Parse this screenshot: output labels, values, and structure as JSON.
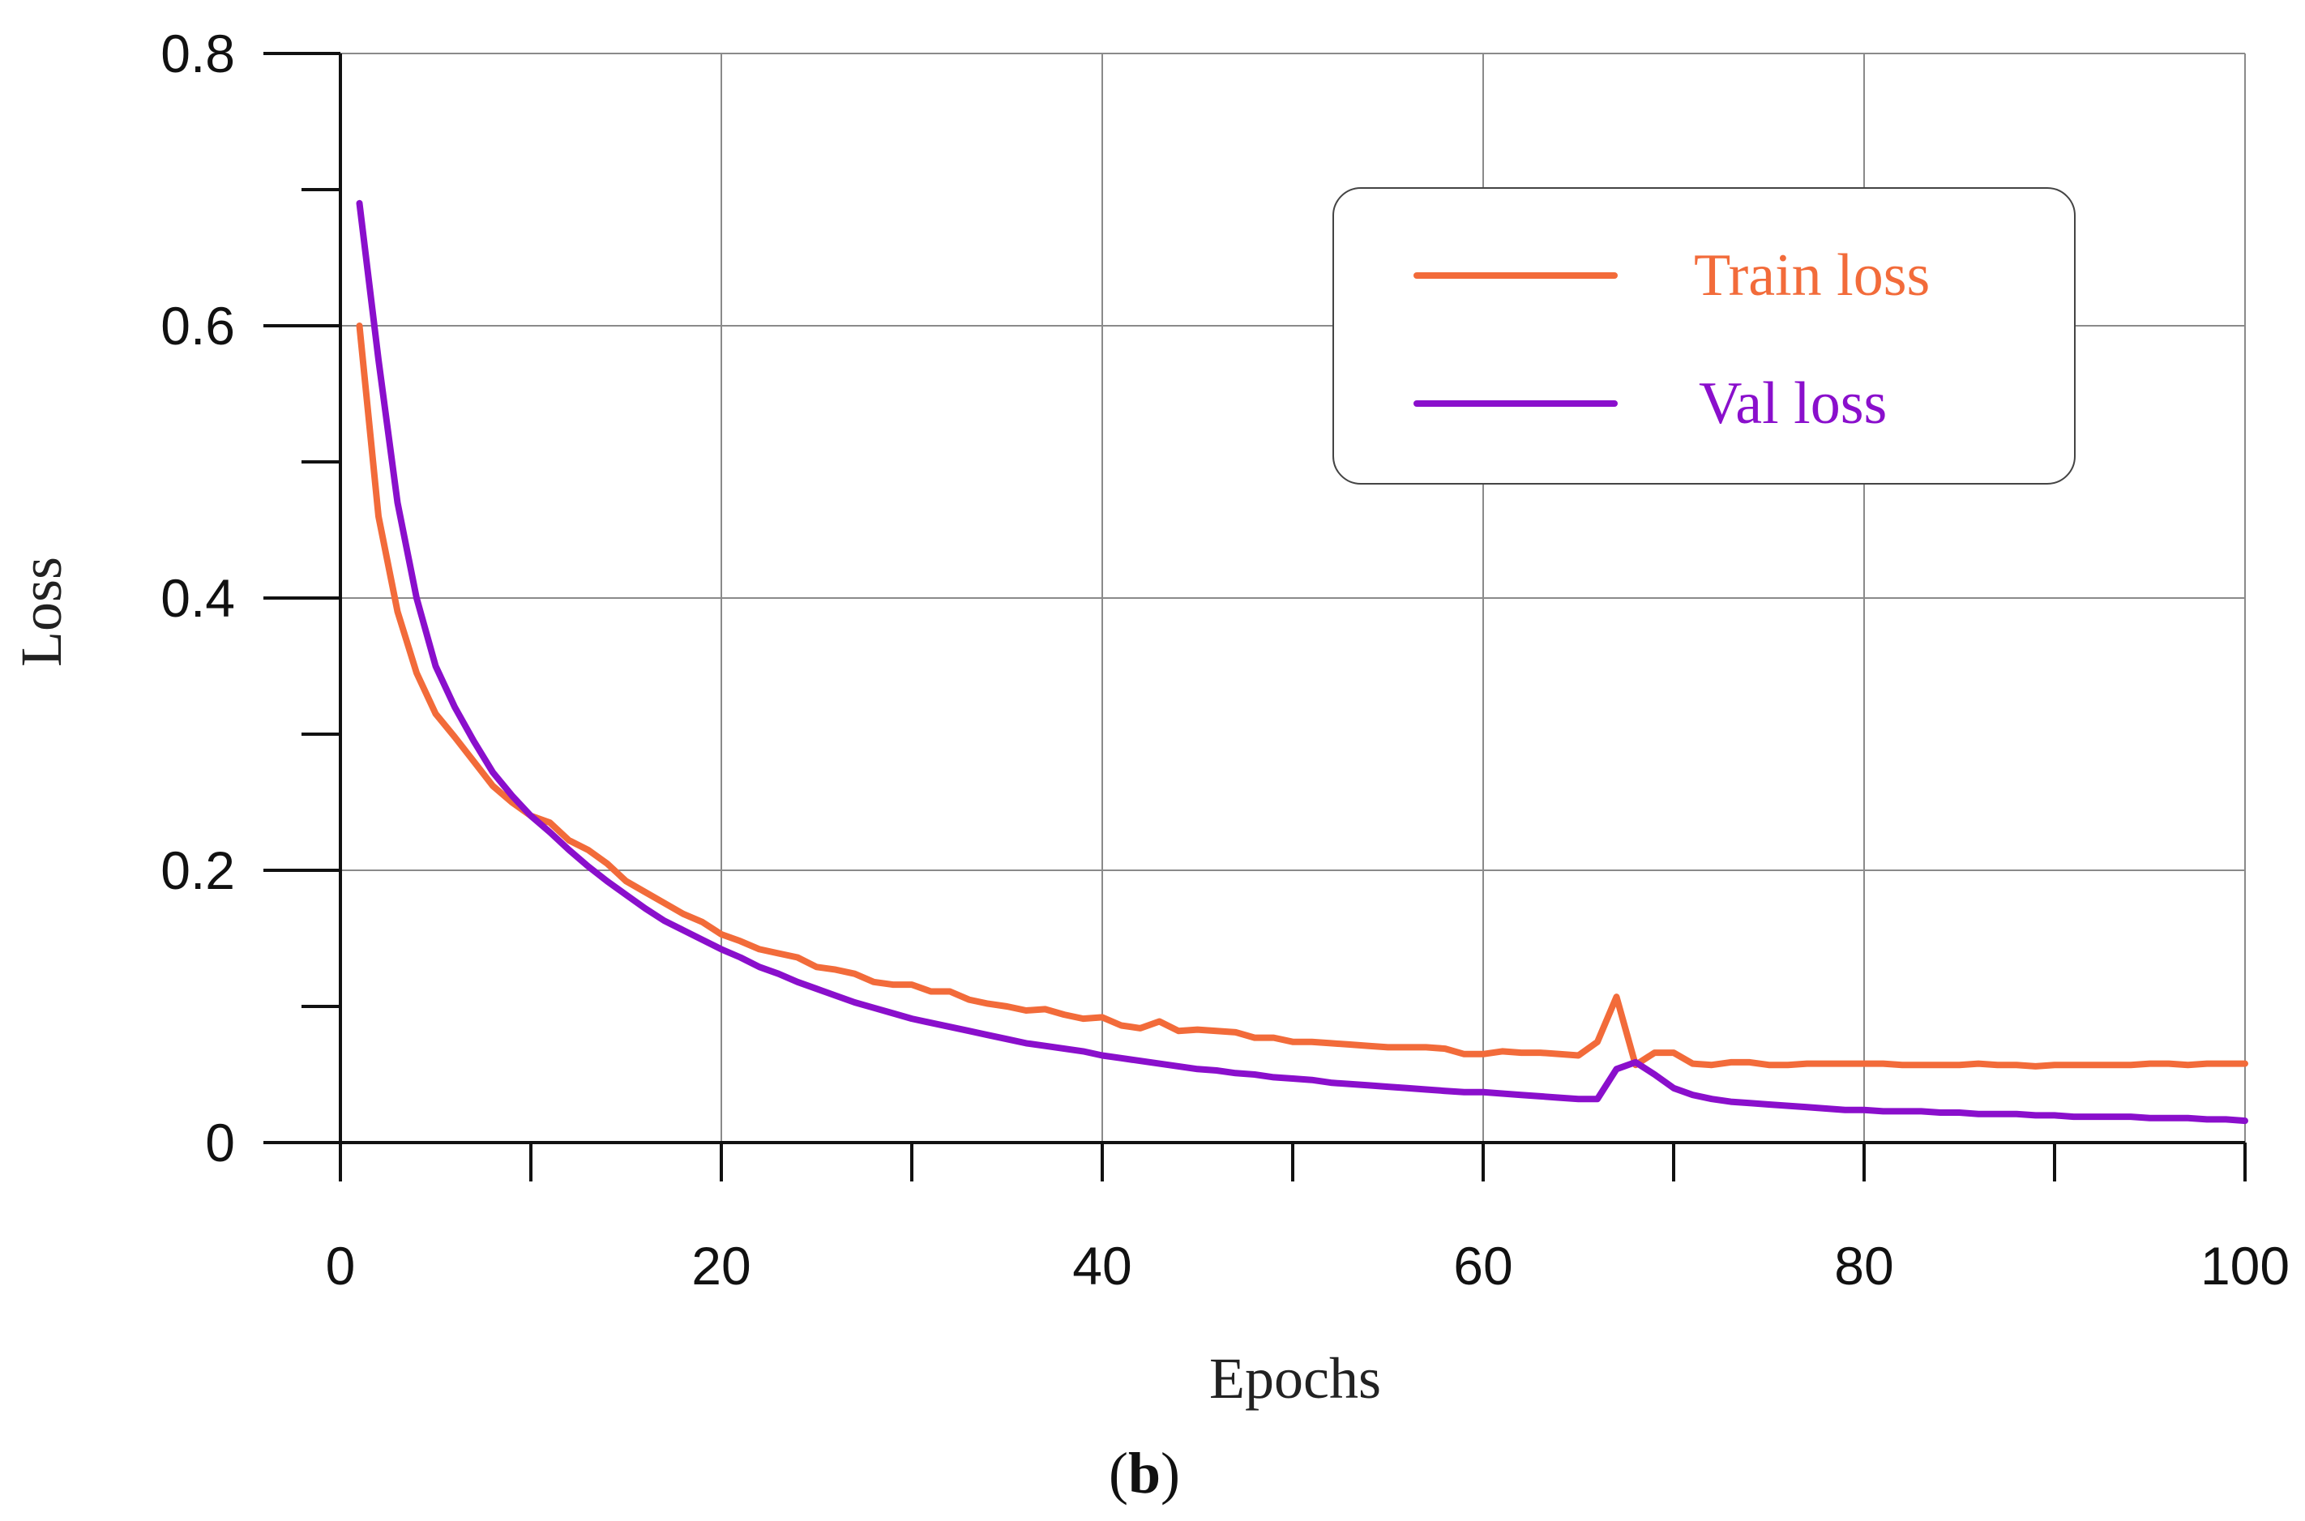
{
  "chart_data": {
    "type": "line",
    "title": "",
    "xlabel": "Epochs",
    "ylabel": "Loss",
    "caption_open": "(",
    "caption_bold": "b",
    "caption_close": ")",
    "xlim": [
      0,
      100
    ],
    "ylim": [
      0,
      0.8
    ],
    "x_ticks": [
      0,
      20,
      40,
      60,
      80,
      100
    ],
    "x_tick_labels": [
      "0",
      "20",
      "40",
      "60",
      "80",
      "100"
    ],
    "x_minor_ticks": [
      10,
      30,
      50,
      70,
      90
    ],
    "y_ticks": [
      0,
      0.2,
      0.4,
      0.6,
      0.8
    ],
    "y_tick_labels": [
      "0",
      "0.2",
      "0.4",
      "0.6",
      "0.8"
    ],
    "y_minor_ticks": [
      0.1,
      0.3,
      0.5,
      0.7
    ],
    "grid": true,
    "legend_position": "top-right",
    "series": [
      {
        "name": "Train loss",
        "color": "#F26B3A",
        "x": [
          1,
          2,
          3,
          4,
          5,
          6,
          7,
          8,
          9,
          10,
          11,
          12,
          13,
          14,
          15,
          16,
          17,
          18,
          19,
          20,
          21,
          22,
          23,
          24,
          25,
          26,
          27,
          28,
          29,
          30,
          31,
          32,
          33,
          34,
          35,
          36,
          37,
          38,
          39,
          40,
          41,
          42,
          43,
          44,
          45,
          46,
          47,
          48,
          49,
          50,
          51,
          52,
          53,
          54,
          55,
          56,
          57,
          58,
          59,
          60,
          61,
          62,
          63,
          64,
          65,
          66,
          67,
          68,
          69,
          70,
          71,
          72,
          73,
          74,
          75,
          76,
          77,
          78,
          79,
          80,
          81,
          82,
          83,
          84,
          85,
          86,
          87,
          88,
          89,
          90,
          91,
          92,
          93,
          94,
          95,
          96,
          97,
          98,
          99,
          100
        ],
        "y": [
          0.6,
          0.46,
          0.39,
          0.345,
          0.315,
          0.298,
          0.28,
          0.262,
          0.25,
          0.24,
          0.235,
          0.222,
          0.215,
          0.205,
          0.192,
          0.184,
          0.176,
          0.168,
          0.162,
          0.153,
          0.148,
          0.142,
          0.139,
          0.136,
          0.129,
          0.127,
          0.124,
          0.118,
          0.116,
          0.116,
          0.111,
          0.111,
          0.105,
          0.102,
          0.1,
          0.097,
          0.098,
          0.094,
          0.091,
          0.092,
          0.086,
          0.084,
          0.089,
          0.082,
          0.083,
          0.082,
          0.081,
          0.077,
          0.077,
          0.074,
          0.074,
          0.073,
          0.072,
          0.071,
          0.07,
          0.07,
          0.07,
          0.069,
          0.065,
          0.065,
          0.067,
          0.066,
          0.066,
          0.065,
          0.064,
          0.074,
          0.107,
          0.057,
          0.066,
          0.066,
          0.058,
          0.057,
          0.059,
          0.059,
          0.057,
          0.057,
          0.058,
          0.058,
          0.058,
          0.058,
          0.058,
          0.057,
          0.057,
          0.057,
          0.057,
          0.058,
          0.057,
          0.057,
          0.056,
          0.057,
          0.057,
          0.057,
          0.057,
          0.057,
          0.058,
          0.058,
          0.057,
          0.058,
          0.058,
          0.058
        ]
      },
      {
        "name": "Val loss",
        "color": "#8A0FCC",
        "x": [
          1,
          2,
          3,
          4,
          5,
          6,
          7,
          8,
          9,
          10,
          11,
          12,
          13,
          14,
          15,
          16,
          17,
          18,
          19,
          20,
          21,
          22,
          23,
          24,
          25,
          26,
          27,
          28,
          29,
          30,
          31,
          32,
          33,
          34,
          35,
          36,
          37,
          38,
          39,
          40,
          41,
          42,
          43,
          44,
          45,
          46,
          47,
          48,
          49,
          50,
          51,
          52,
          53,
          54,
          55,
          56,
          57,
          58,
          59,
          60,
          61,
          62,
          63,
          64,
          65,
          66,
          67,
          68,
          69,
          70,
          71,
          72,
          73,
          74,
          75,
          76,
          77,
          78,
          79,
          80,
          81,
          82,
          83,
          84,
          85,
          86,
          87,
          88,
          89,
          90,
          91,
          92,
          93,
          94,
          95,
          96,
          97,
          98,
          99,
          100
        ],
        "y": [
          0.69,
          0.575,
          0.47,
          0.4,
          0.35,
          0.32,
          0.295,
          0.272,
          0.255,
          0.24,
          0.228,
          0.215,
          0.203,
          0.192,
          0.182,
          0.172,
          0.163,
          0.156,
          0.149,
          0.142,
          0.136,
          0.129,
          0.124,
          0.118,
          0.113,
          0.108,
          0.103,
          0.099,
          0.095,
          0.091,
          0.088,
          0.085,
          0.082,
          0.079,
          0.076,
          0.073,
          0.071,
          0.069,
          0.067,
          0.064,
          0.062,
          0.06,
          0.058,
          0.056,
          0.054,
          0.053,
          0.051,
          0.05,
          0.048,
          0.047,
          0.046,
          0.044,
          0.043,
          0.042,
          0.041,
          0.04,
          0.039,
          0.038,
          0.037,
          0.037,
          0.036,
          0.035,
          0.034,
          0.033,
          0.032,
          0.032,
          0.054,
          0.059,
          0.05,
          0.04,
          0.035,
          0.032,
          0.03,
          0.029,
          0.028,
          0.027,
          0.026,
          0.025,
          0.024,
          0.024,
          0.023,
          0.023,
          0.023,
          0.022,
          0.022,
          0.021,
          0.021,
          0.021,
          0.02,
          0.02,
          0.019,
          0.019,
          0.019,
          0.019,
          0.018,
          0.018,
          0.018,
          0.017,
          0.017,
          0.016
        ]
      }
    ]
  }
}
